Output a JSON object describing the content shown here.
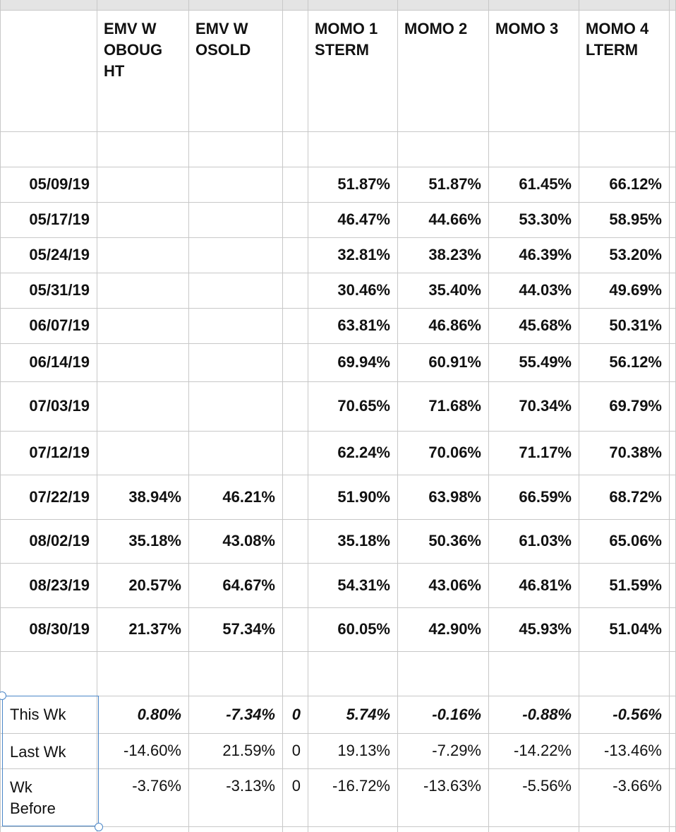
{
  "header": [
    null,
    [
      "EMV W",
      "OBOUG",
      "HT"
    ],
    [
      "EMV W",
      "OSOLD"
    ],
    null,
    [
      "MOMO 1",
      "STERM"
    ],
    [
      "MOMO 2"
    ],
    [
      "MOMO 3"
    ],
    [
      "MOMO 4",
      "LTERM"
    ]
  ],
  "rows": [
    [
      "05/09/19",
      null,
      null,
      null,
      "51.87%",
      "51.87%",
      "61.45%",
      "66.12%"
    ],
    [
      "05/17/19",
      null,
      null,
      null,
      "46.47%",
      "44.66%",
      "53.30%",
      "58.95%"
    ],
    [
      "05/24/19",
      null,
      null,
      null,
      "32.81%",
      "38.23%",
      "46.39%",
      "53.20%"
    ],
    [
      "05/31/19",
      null,
      null,
      null,
      "30.46%",
      "35.40%",
      "44.03%",
      "49.69%"
    ],
    [
      "06/07/19",
      null,
      null,
      null,
      "63.81%",
      "46.86%",
      "45.68%",
      "50.31%"
    ],
    [
      "06/14/19",
      null,
      null,
      null,
      "69.94%",
      "60.91%",
      "55.49%",
      "56.12%"
    ],
    [
      "07/03/19",
      null,
      null,
      null,
      "70.65%",
      "71.68%",
      "70.34%",
      "69.79%"
    ],
    [
      "07/12/19",
      null,
      null,
      null,
      "62.24%",
      "70.06%",
      "71.17%",
      "70.38%"
    ],
    [
      "07/22/19",
      "38.94%",
      "46.21%",
      null,
      "51.90%",
      "63.98%",
      "66.59%",
      "68.72%"
    ],
    [
      "08/02/19",
      "35.18%",
      "43.08%",
      null,
      "35.18%",
      "50.36%",
      "61.03%",
      "65.06%"
    ],
    [
      "08/23/19",
      "20.57%",
      "64.67%",
      null,
      "54.31%",
      "43.06%",
      "46.81%",
      "51.59%"
    ],
    [
      "08/30/19",
      "21.37%",
      "57.34%",
      null,
      "60.05%",
      "42.90%",
      "45.93%",
      "51.04%"
    ]
  ],
  "summary": [
    [
      [
        "This Wk"
      ],
      "0.80%",
      "-7.34%",
      "0",
      "5.74%",
      "-0.16%",
      "-0.88%",
      "-0.56%"
    ],
    [
      [
        "Last Wk"
      ],
      "-14.60%",
      "21.59%",
      "0",
      "19.13%",
      "-7.29%",
      "-14.22%",
      "-13.46%"
    ],
    [
      [
        "Wk",
        "Before"
      ],
      "-3.76%",
      "-3.13%",
      "0",
      "-16.72%",
      "-13.63%",
      "-5.56%",
      "-3.66%"
    ]
  ]
}
